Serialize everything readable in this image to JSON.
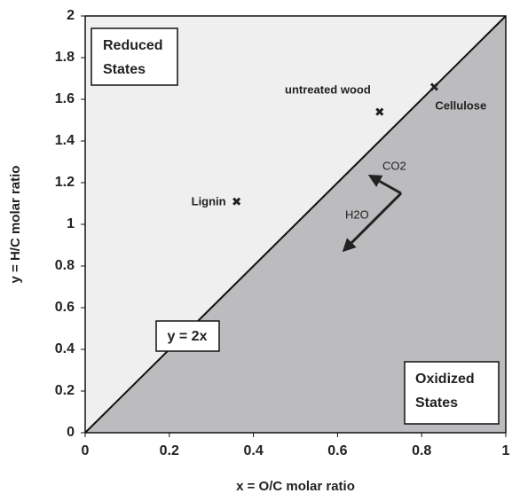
{
  "chart_data": {
    "type": "scatter",
    "xlabel": "x = O/C molar ratio",
    "ylabel": "y = H/C molar ratio",
    "xlim": [
      0,
      1
    ],
    "ylim": [
      0,
      2
    ],
    "xticks": [
      0,
      0.2,
      0.4,
      0.6,
      0.8,
      1
    ],
    "yticks": [
      0,
      0.2,
      0.4,
      0.6,
      0.8,
      1,
      1.2,
      1.4,
      1.6,
      1.8,
      2
    ],
    "color": "#222222",
    "upper_region_color": "#efefef",
    "lower_region_color": "#bcbcbf",
    "points": [
      {
        "label": "Lignin",
        "x": 0.36,
        "y": 1.11
      },
      {
        "label": "untreated wood",
        "x": 0.7,
        "y": 1.54
      },
      {
        "label": "Cellulose",
        "x": 0.83,
        "y": 1.66
      }
    ],
    "annotations": {
      "reduced": [
        "Reduced",
        "States"
      ],
      "oxidized": [
        "Oxidized",
        "States"
      ],
      "line_label": "y = 2x",
      "co2": "CO2",
      "h2o": "H2O"
    }
  }
}
